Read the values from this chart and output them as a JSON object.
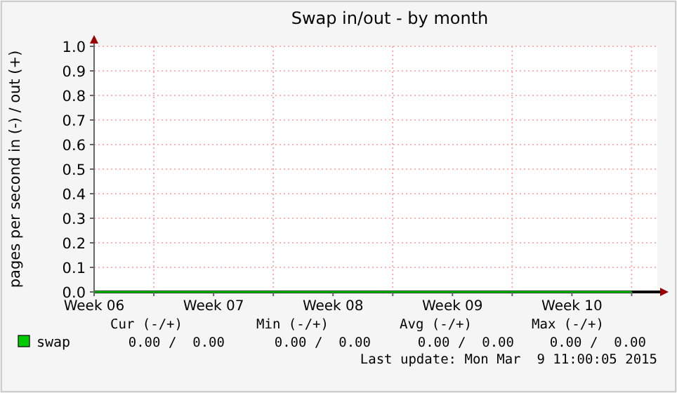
{
  "chart_data": {
    "type": "line",
    "title": "Swap in/out - by month",
    "ylabel": "pages per second in (-) / out (+)",
    "categories": [
      "Week 06",
      null,
      "Week 07",
      null,
      "Week 08",
      null,
      "Week 09",
      null,
      "Week 10",
      null
    ],
    "ylim": [
      0,
      1
    ],
    "yticks": [
      {
        "value": 0,
        "label": "0.0"
      },
      {
        "value": 0.1,
        "label": "0.1"
      },
      {
        "value": 0.2,
        "label": "0.2"
      },
      {
        "value": 0.3,
        "label": "0.3"
      },
      {
        "value": 0.4,
        "label": "0.4"
      },
      {
        "value": 0.5,
        "label": "0.5"
      },
      {
        "value": 0.6,
        "label": "0.6"
      },
      {
        "value": 0.7,
        "label": "0.7"
      },
      {
        "value": 0.8,
        "label": "0.8"
      },
      {
        "value": 0.9,
        "label": "0.9"
      },
      {
        "value": 1,
        "label": "1.0"
      }
    ],
    "grid": true,
    "legend": "bottom left",
    "marker": "none",
    "line_style": "solid",
    "series": [
      {
        "name": "swap",
        "color": "#00cc00",
        "values": [
          0,
          0,
          0,
          0,
          0,
          0,
          0,
          0,
          0,
          0
        ]
      }
    ],
    "annotations": [
      "Cur (-/+)",
      "Min (-/+)",
      "Avg (-/+)",
      "Max (-/+)",
      "0.00 /  0.00",
      "0.00 /  0.00",
      "0.00 /  0.00",
      "0.00 /  0.00",
      "Last update: Mon Mar  9 11:00:05 2015"
    ]
  }
}
